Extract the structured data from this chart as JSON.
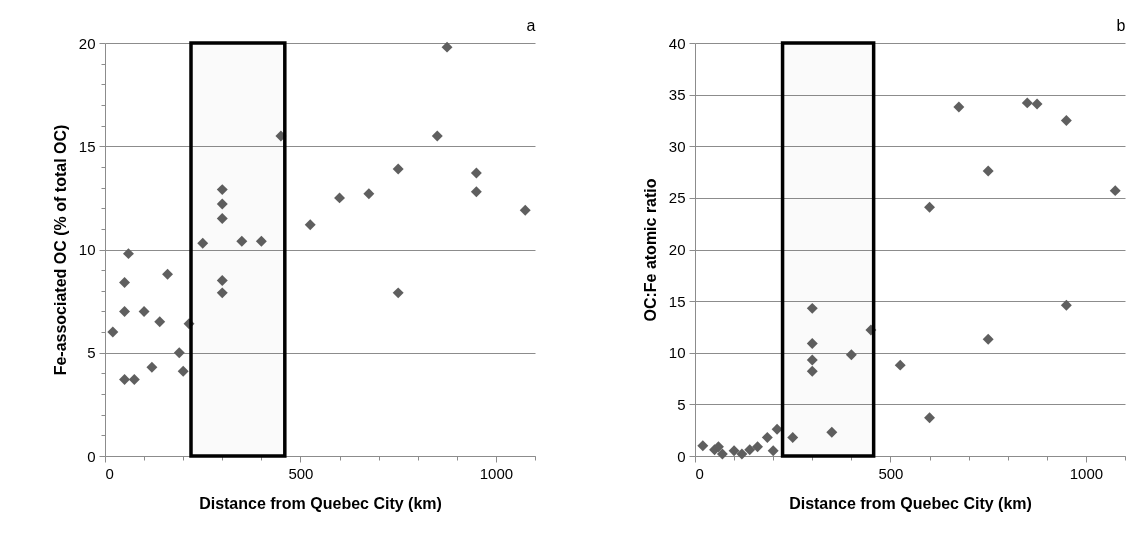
{
  "chart_data": [
    {
      "type": "scatter",
      "title": "a",
      "xlabel": "Distance from Quebec City (km)",
      "ylabel": "Fe-associated OC (% of total OC)",
      "x": [
        20,
        50,
        50,
        50,
        60,
        75,
        100,
        120,
        140,
        160,
        190,
        200,
        215,
        250,
        300,
        300,
        300,
        300,
        300,
        350,
        400,
        450,
        525,
        600,
        675,
        750,
        750,
        850,
        875,
        950,
        950,
        1075
      ],
      "series": [
        {
          "color": "#5f5f5f",
          "values": [
            6.0,
            3.7,
            7.0,
            8.4,
            9.8,
            3.7,
            7.0,
            4.3,
            6.5,
            8.8,
            5.0,
            4.1,
            6.4,
            10.3,
            7.9,
            8.5,
            11.5,
            12.2,
            12.9,
            10.4,
            10.4,
            15.5,
            11.2,
            12.5,
            12.7,
            7.9,
            13.9,
            15.5,
            19.8,
            12.8,
            13.7,
            11.9
          ]
        }
      ],
      "xlim": [
        0,
        1100
      ],
      "ylim": [
        0,
        20
      ],
      "xticks": [
        0,
        {
          "value": 100,
          "label": null
        },
        {
          "value": 200,
          "label": null
        },
        {
          "value": 300,
          "label": null
        },
        {
          "value": 400,
          "label": null
        },
        500,
        {
          "value": 600,
          "label": null
        },
        {
          "value": 700,
          "label": null
        },
        {
          "value": 800,
          "label": null
        },
        {
          "value": 900,
          "label": null
        },
        1000,
        {
          "value": 1100,
          "label": null
        }
      ],
      "yticks": [
        0,
        {
          "value": 1,
          "label": null
        },
        {
          "value": 2,
          "label": null
        },
        {
          "value": 3,
          "label": null
        },
        {
          "value": 4,
          "label": null
        },
        5,
        {
          "value": 6,
          "label": null
        },
        {
          "value": 7,
          "label": null
        },
        {
          "value": 8,
          "label": null
        },
        {
          "value": 9,
          "label": null
        },
        10,
        {
          "value": 11,
          "label": null
        },
        {
          "value": 12,
          "label": null
        },
        {
          "value": 13,
          "label": null
        },
        {
          "value": 14,
          "label": null
        },
        15,
        {
          "value": 16,
          "label": null
        },
        {
          "value": 17,
          "label": null
        },
        {
          "value": 18,
          "label": null
        },
        {
          "value": 19,
          "label": null
        },
        20
      ],
      "bands": [
        {
          "axis": "x",
          "from": 220,
          "to": 460,
          "color": "#000000"
        }
      ],
      "grid": "y",
      "marker": "diamond"
    },
    {
      "type": "scatter",
      "title": "b",
      "xlabel": "Distance from Quebec City (km)",
      "ylabel": "OC:Fe atomic ratio",
      "x": [
        20,
        50,
        60,
        70,
        100,
        120,
        140,
        160,
        185,
        200,
        210,
        250,
        300,
        300,
        300,
        300,
        350,
        400,
        450,
        525,
        600,
        600,
        675,
        750,
        750,
        850,
        875,
        950,
        950,
        1075
      ],
      "series": [
        {
          "color": "#5f5f5f",
          "values": [
            1.0,
            0.6,
            0.9,
            0.2,
            0.5,
            0.2,
            0.6,
            0.9,
            1.8,
            0.5,
            2.6,
            1.8,
            14.3,
            10.9,
            9.3,
            8.2,
            2.3,
            9.8,
            12.2,
            8.8,
            3.7,
            24.1,
            33.8,
            27.6,
            11.3,
            34.2,
            34.1,
            32.5,
            14.6,
            25.7
          ]
        }
      ],
      "xlim": [
        0,
        1100
      ],
      "ylim": [
        0,
        40
      ],
      "xticks": [
        0,
        {
          "value": 100,
          "label": null
        },
        {
          "value": 200,
          "label": null
        },
        {
          "value": 300,
          "label": null
        },
        {
          "value": 400,
          "label": null
        },
        500,
        {
          "value": 600,
          "label": null
        },
        {
          "value": 700,
          "label": null
        },
        {
          "value": 800,
          "label": null
        },
        {
          "value": 900,
          "label": null
        },
        1000,
        {
          "value": 1100,
          "label": null
        }
      ],
      "yticks": [
        0,
        5,
        10,
        15,
        20,
        25,
        30,
        35,
        40
      ],
      "bands": [
        {
          "axis": "x",
          "from": 224,
          "to": 457,
          "color": "#000000"
        }
      ],
      "grid": "y",
      "marker": "diamond"
    }
  ]
}
